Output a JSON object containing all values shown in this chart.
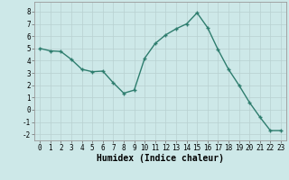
{
  "x": [
    0,
    1,
    2,
    3,
    4,
    5,
    6,
    7,
    8,
    9,
    10,
    11,
    12,
    13,
    14,
    15,
    16,
    17,
    18,
    19,
    20,
    21,
    22,
    23
  ],
  "y": [
    5.0,
    4.8,
    4.75,
    4.1,
    3.3,
    3.1,
    3.15,
    2.2,
    1.35,
    1.6,
    4.2,
    5.4,
    6.1,
    6.6,
    7.0,
    7.9,
    6.7,
    4.9,
    3.3,
    2.0,
    0.6,
    -0.6,
    -1.7,
    -1.7
  ],
  "title": "",
  "xlabel": "Humidex (Indice chaleur)",
  "ylabel": "",
  "line_color": "#2e7d6e",
  "marker": "+",
  "background_color": "#cde8e8",
  "grid_major_color": "#b8d0d0",
  "grid_minor_color": "#c8dede",
  "ylim": [
    -2.5,
    8.8
  ],
  "xlim": [
    -0.5,
    23.5
  ],
  "yticks": [
    -2,
    -1,
    0,
    1,
    2,
    3,
    4,
    5,
    6,
    7,
    8
  ],
  "xticks": [
    0,
    1,
    2,
    3,
    4,
    5,
    6,
    7,
    8,
    9,
    10,
    11,
    12,
    13,
    14,
    15,
    16,
    17,
    18,
    19,
    20,
    21,
    22,
    23
  ],
  "tick_fontsize": 5.5,
  "xlabel_fontsize": 7,
  "linewidth": 1.0,
  "markersize": 3.5,
  "markeredgewidth": 1.0
}
